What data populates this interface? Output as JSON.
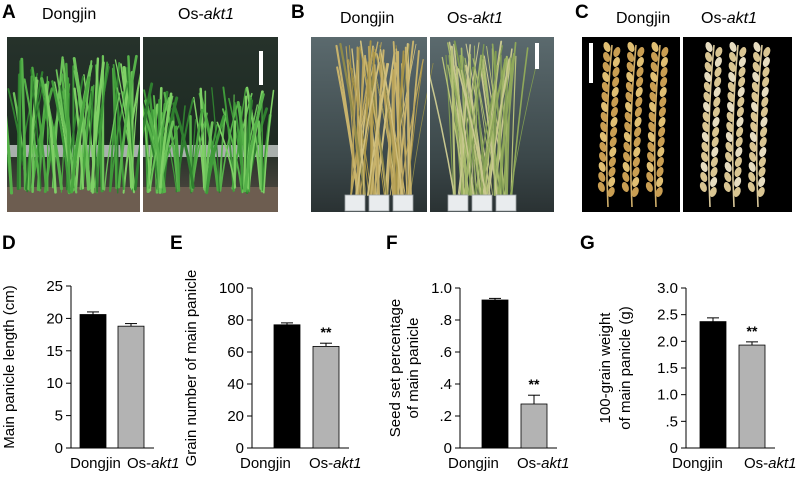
{
  "panels": {
    "A": {
      "letter": "A",
      "labels": [
        {
          "prefix": "Dongjin",
          "italic": ""
        },
        {
          "prefix": "Os-",
          "italic": "akt1"
        }
      ]
    },
    "B": {
      "letter": "B",
      "labels": [
        {
          "prefix": "Dongjin",
          "italic": ""
        },
        {
          "prefix": "Os-",
          "italic": "akt1"
        }
      ]
    },
    "C": {
      "letter": "C",
      "labels": [
        {
          "prefix": "Dongjin",
          "italic": ""
        },
        {
          "prefix": "Os-",
          "italic": "akt1"
        }
      ]
    }
  },
  "colors": {
    "dongjin_bar": "#000000",
    "akt1_bar": "#b3b3b3",
    "greenhouse_bg": "#1e2620",
    "field_bg": "#3d4a4c",
    "panicle_bg": "#000000"
  },
  "chart_data": [
    {
      "panel": "D",
      "type": "bar",
      "ylabel": "Main panicle length (cm)",
      "ylim": [
        0,
        25
      ],
      "yticks": [
        "0",
        "5",
        "10",
        "15",
        "20",
        "25"
      ],
      "ytick_values": [
        0,
        5,
        10,
        15,
        20,
        25
      ],
      "categories": [
        {
          "prefix": "Dongjin",
          "italic": ""
        },
        {
          "prefix": "Os-",
          "italic": "akt1"
        }
      ],
      "values": [
        20.6,
        18.8
      ],
      "errors": [
        0.4,
        0.4
      ],
      "significance": [
        "",
        ""
      ]
    },
    {
      "panel": "E",
      "type": "bar",
      "ylabel": "Grain number of main panicle",
      "ylim": [
        0,
        100
      ],
      "yticks": [
        "0",
        "20",
        "40",
        "60",
        "80",
        "100"
      ],
      "ytick_values": [
        0,
        20,
        40,
        60,
        80,
        100
      ],
      "categories": [
        {
          "prefix": "Dongjin",
          "italic": ""
        },
        {
          "prefix": "Os-",
          "italic": "akt1"
        }
      ],
      "values": [
        77,
        63.5
      ],
      "errors": [
        1.2,
        2.0
      ],
      "significance": [
        "",
        "**"
      ]
    },
    {
      "panel": "F",
      "type": "bar",
      "ylabel": "Seed set percentage",
      "ylabel2": "of main panicle",
      "ylim": [
        0,
        1.0
      ],
      "yticks": [
        "0",
        ".2",
        ".4",
        ".6",
        ".8",
        "1.0"
      ],
      "ytick_values": [
        0,
        0.2,
        0.4,
        0.6,
        0.8,
        1.0
      ],
      "categories": [
        {
          "prefix": "Dongjin",
          "italic": ""
        },
        {
          "prefix": "Os-",
          "italic": "akt1"
        }
      ],
      "values": [
        0.925,
        0.275
      ],
      "errors": [
        0.01,
        0.055
      ],
      "significance": [
        "",
        "**"
      ]
    },
    {
      "panel": "G",
      "type": "bar",
      "ylabel": "100-grain weight",
      "ylabel2": "of main panicle (g)",
      "ylim": [
        0,
        3.0
      ],
      "yticks": [
        "0",
        ".5",
        "1.0",
        "1.5",
        "2.0",
        "2.5",
        "3.0"
      ],
      "ytick_values": [
        0,
        0.5,
        1.0,
        1.5,
        2.0,
        2.5,
        3.0
      ],
      "categories": [
        {
          "prefix": "Dongjin",
          "italic": ""
        },
        {
          "prefix": "Os-",
          "italic": "akt1"
        }
      ],
      "values": [
        2.37,
        1.93
      ],
      "errors": [
        0.07,
        0.06
      ],
      "significance": [
        "",
        "**"
      ]
    }
  ]
}
